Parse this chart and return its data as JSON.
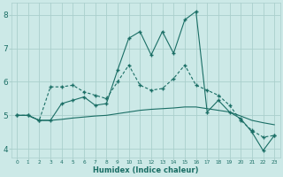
{
  "xlabel": "Humidex (Indice chaleur)",
  "background_color": "#cce9e7",
  "grid_color": "#aacfcc",
  "line_color": "#1a6e65",
  "xlim": [
    -0.5,
    23.5
  ],
  "ylim": [
    3.75,
    8.35
  ],
  "xticks": [
    0,
    1,
    2,
    3,
    4,
    5,
    6,
    7,
    8,
    9,
    10,
    11,
    12,
    13,
    14,
    15,
    16,
    17,
    18,
    19,
    20,
    21,
    22,
    23
  ],
  "yticks": [
    4,
    5,
    6,
    7,
    8
  ],
  "line1_x": [
    0,
    1,
    2,
    3,
    4,
    5,
    6,
    7,
    8,
    9,
    10,
    11,
    12,
    13,
    14,
    15,
    16,
    17,
    18,
    19,
    20,
    21,
    22,
    23
  ],
  "line1_y": [
    5.0,
    5.0,
    4.85,
    4.85,
    5.35,
    5.45,
    5.55,
    5.3,
    5.35,
    6.35,
    7.3,
    7.5,
    6.8,
    7.5,
    6.85,
    7.85,
    8.1,
    5.1,
    5.45,
    5.1,
    4.9,
    4.5,
    3.95,
    4.4
  ],
  "line2_x": [
    0,
    1,
    2,
    3,
    4,
    5,
    6,
    7,
    8,
    9,
    10,
    11,
    12,
    13,
    14,
    15,
    16,
    17,
    18,
    19,
    20,
    21,
    22,
    23
  ],
  "line2_y": [
    5.0,
    5.0,
    4.85,
    5.85,
    5.85,
    5.9,
    5.7,
    5.6,
    5.5,
    6.0,
    6.5,
    5.9,
    5.75,
    5.8,
    6.1,
    6.5,
    5.9,
    5.75,
    5.6,
    5.3,
    4.85,
    4.55,
    4.35,
    4.4
  ],
  "line3_x": [
    0,
    1,
    2,
    3,
    4,
    5,
    6,
    7,
    8,
    9,
    10,
    11,
    12,
    13,
    14,
    15,
    16,
    17,
    18,
    19,
    20,
    21,
    22,
    23
  ],
  "line3_y": [
    5.0,
    5.0,
    4.85,
    4.85,
    4.88,
    4.92,
    4.95,
    4.98,
    5.0,
    5.05,
    5.1,
    5.15,
    5.18,
    5.2,
    5.22,
    5.25,
    5.25,
    5.2,
    5.15,
    5.1,
    4.98,
    4.85,
    4.78,
    4.72
  ]
}
